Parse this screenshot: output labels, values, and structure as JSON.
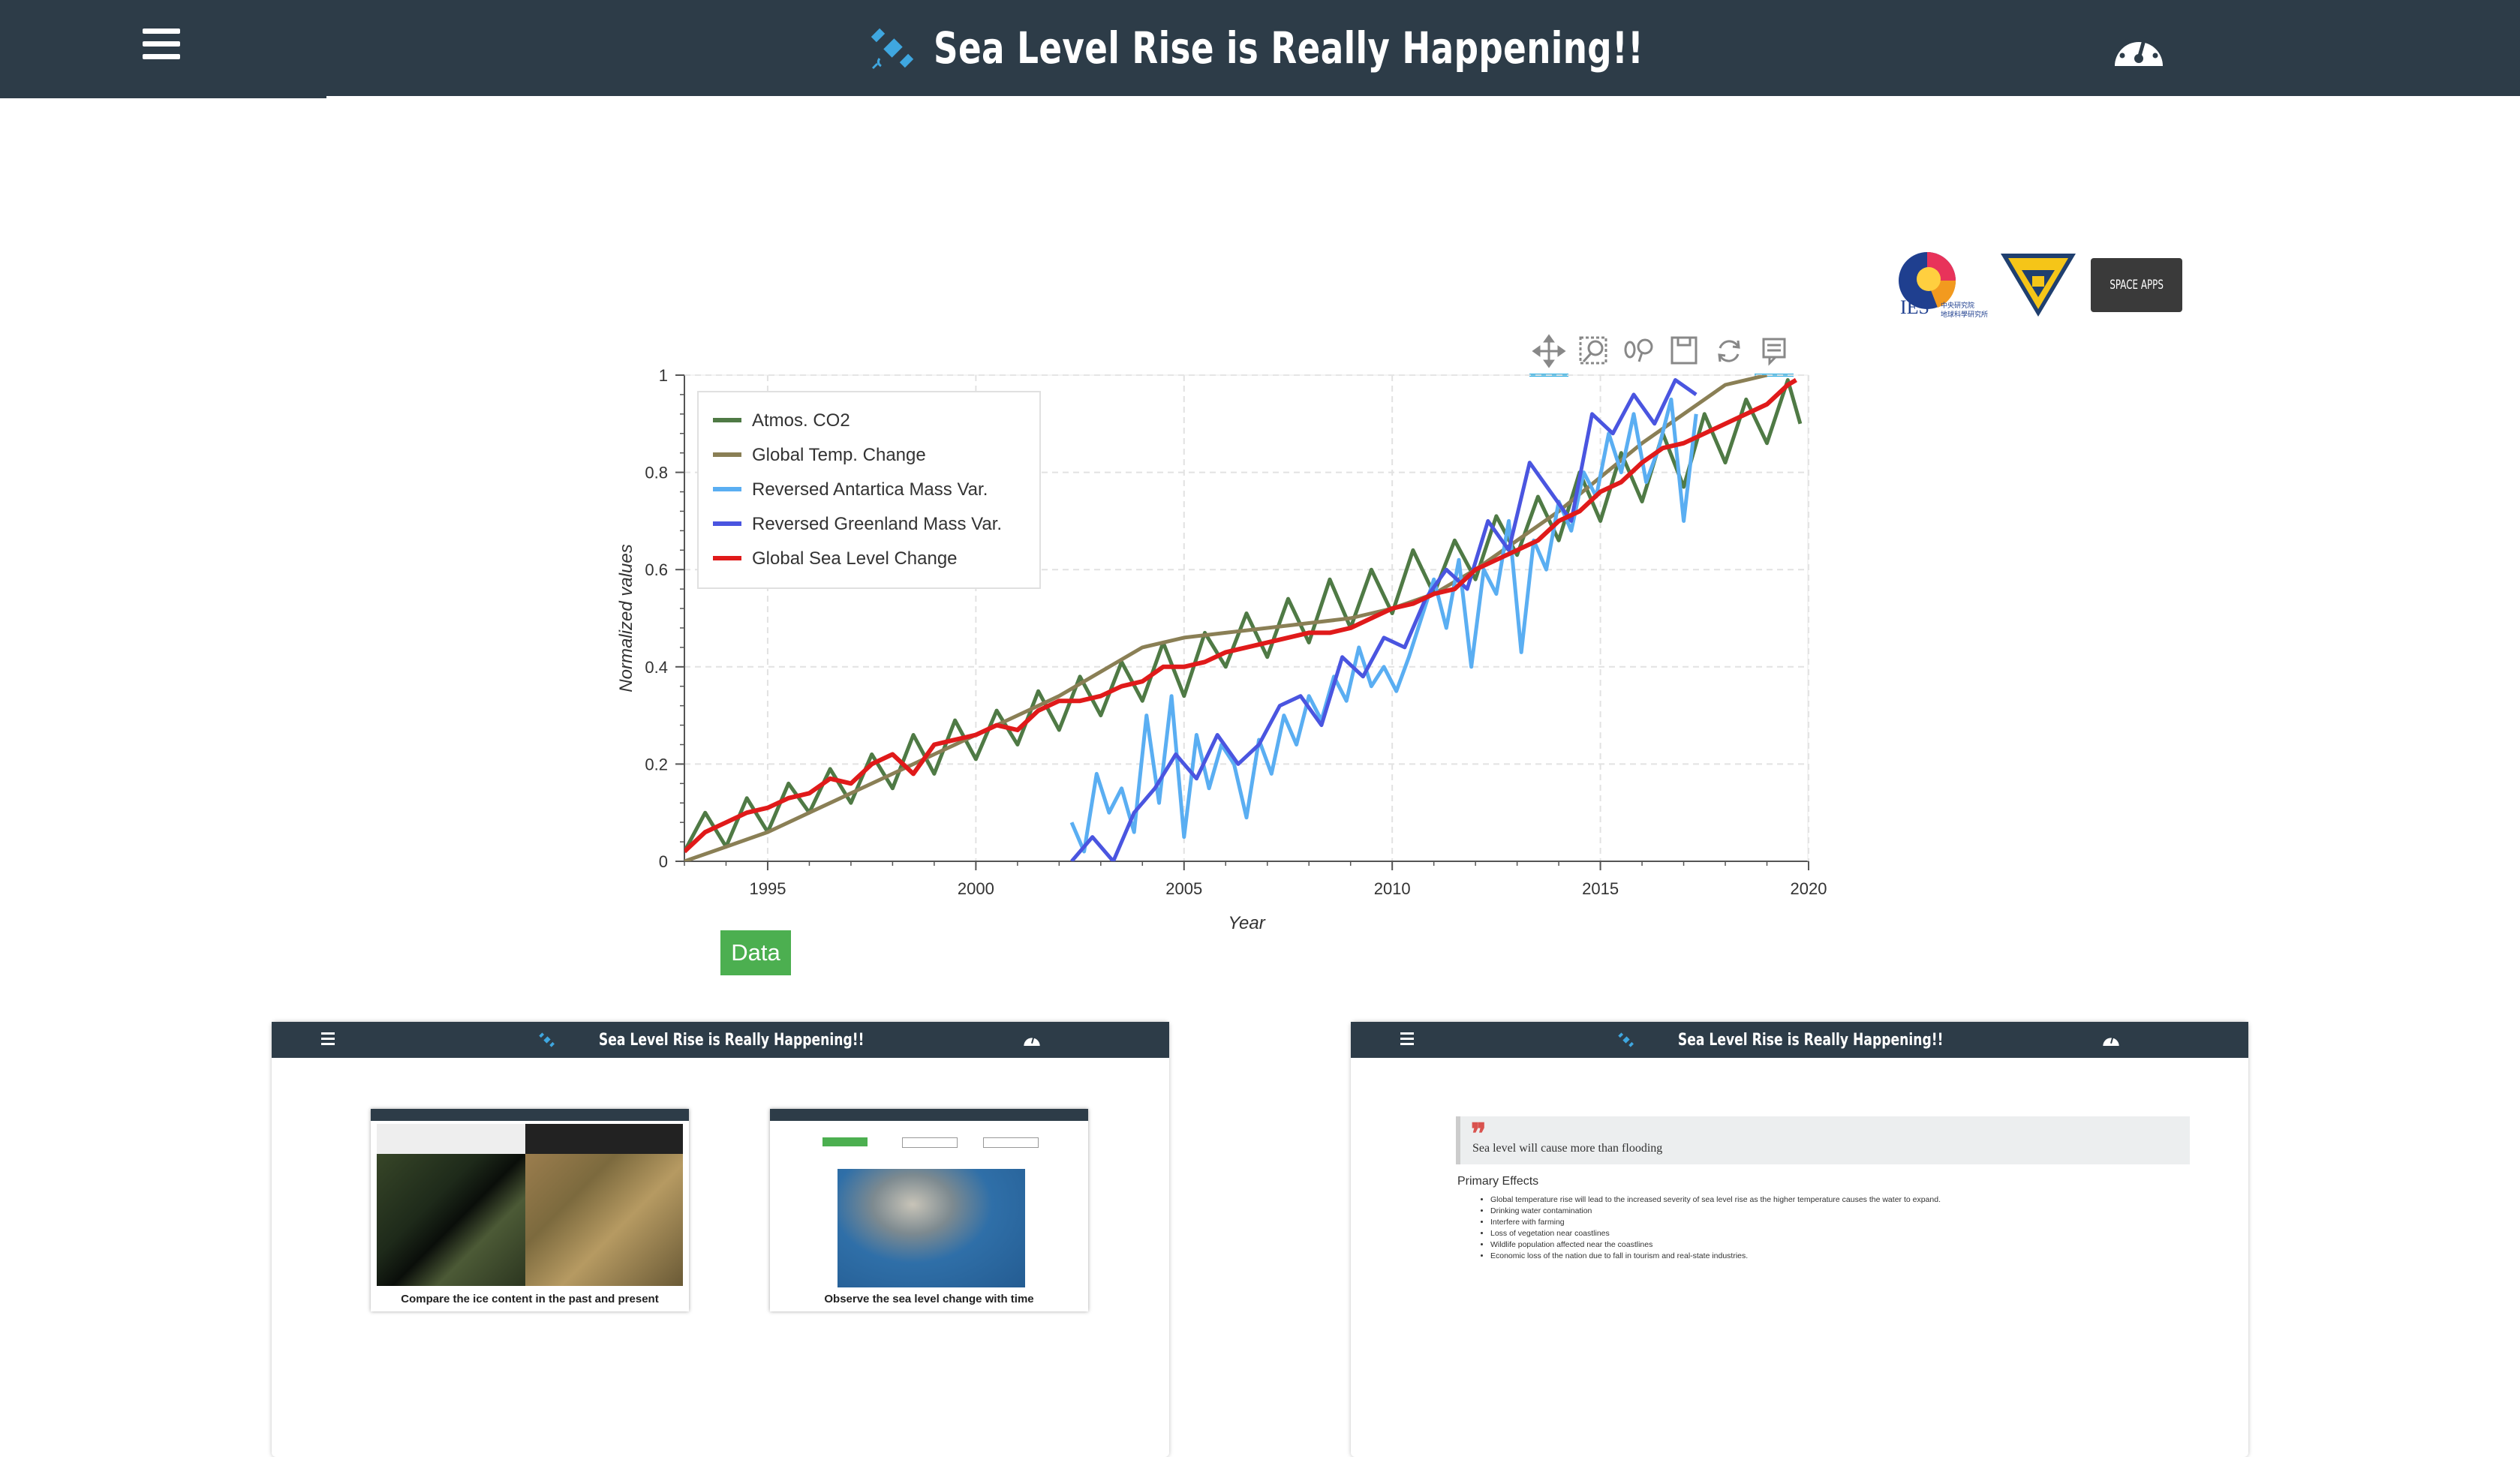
{
  "header": {
    "title": "Sea Level Rise is Really Happening!!",
    "title_icon": "satellite-icon",
    "menu_icon": "hamburger-menu-icon",
    "dashboard_icon": "dashboard-gauge-icon"
  },
  "logos": [
    {
      "name": "ies-logo",
      "text": "IES"
    },
    {
      "name": "university-logo",
      "text": ""
    },
    {
      "name": "space-apps-logo",
      "text": "SPACE APPS"
    }
  ],
  "toolbar": {
    "tools": [
      "pan-tool-icon",
      "box-zoom-tool-icon",
      "wheel-zoom-tool-icon",
      "save-tool-icon",
      "reset-tool-icon",
      "hover-tool-icon"
    ]
  },
  "chart_data": {
    "type": "line",
    "title": "",
    "xlabel": "Year",
    "ylabel": "Normalized values",
    "xlim": [
      1993,
      2020
    ],
    "ylim": [
      0,
      1
    ],
    "x_ticks": [
      "1995",
      "2000",
      "2005",
      "2010",
      "2015",
      "2020"
    ],
    "y_ticks": [
      "0",
      "0.2",
      "0.4",
      "0.6",
      "0.8",
      "1"
    ],
    "grid": true,
    "legend_position": "top-left",
    "series": [
      {
        "name": "Atmos. CO2",
        "color": "#4f7a45",
        "x": [
          1993.0,
          1993.5,
          1994.0,
          1994.5,
          1995.0,
          1995.5,
          1996.0,
          1996.5,
          1997.0,
          1997.5,
          1998.0,
          1998.5,
          1999.0,
          1999.5,
          2000.0,
          2000.5,
          2001.0,
          2001.5,
          2002.0,
          2002.5,
          2003.0,
          2003.5,
          2004.0,
          2004.5,
          2005.0,
          2005.5,
          2006.0,
          2006.5,
          2007.0,
          2007.5,
          2008.0,
          2008.5,
          2009.0,
          2009.5,
          2010.0,
          2010.5,
          2011.0,
          2011.5,
          2012.0,
          2012.5,
          2013.0,
          2013.5,
          2014.0,
          2014.5,
          2015.0,
          2015.5,
          2016.0,
          2016.5,
          2017.0,
          2017.5,
          2018.0,
          2018.5,
          2019.0,
          2019.5,
          2019.8
        ],
        "y": [
          0.02,
          0.1,
          0.03,
          0.13,
          0.06,
          0.16,
          0.1,
          0.19,
          0.12,
          0.22,
          0.15,
          0.26,
          0.18,
          0.29,
          0.21,
          0.31,
          0.24,
          0.35,
          0.27,
          0.38,
          0.3,
          0.41,
          0.33,
          0.45,
          0.34,
          0.47,
          0.4,
          0.51,
          0.42,
          0.54,
          0.45,
          0.58,
          0.48,
          0.6,
          0.51,
          0.64,
          0.55,
          0.66,
          0.58,
          0.71,
          0.63,
          0.75,
          0.66,
          0.8,
          0.7,
          0.84,
          0.74,
          0.88,
          0.77,
          0.92,
          0.82,
          0.95,
          0.86,
          0.99,
          0.9
        ]
      },
      {
        "name": "Global Temp. Change",
        "color": "#8a7f55",
        "x": [
          1993,
          1994,
          1995,
          1996,
          1997,
          1998,
          1999,
          2000,
          2001,
          2002,
          2003,
          2004,
          2005,
          2006,
          2007,
          2008,
          2009,
          2010,
          2011,
          2012,
          2013,
          2014,
          2015,
          2016,
          2017,
          2018,
          2019
        ],
        "y": [
          0.0,
          0.03,
          0.06,
          0.1,
          0.14,
          0.18,
          0.22,
          0.26,
          0.3,
          0.34,
          0.39,
          0.44,
          0.46,
          0.47,
          0.48,
          0.49,
          0.5,
          0.52,
          0.55,
          0.6,
          0.66,
          0.72,
          0.79,
          0.86,
          0.92,
          0.98,
          1.0
        ]
      },
      {
        "name": "Reversed Antartica Mass Var.",
        "color": "#5aaef2",
        "x": [
          2002.3,
          2002.6,
          2002.9,
          2003.2,
          2003.5,
          2003.8,
          2004.1,
          2004.4,
          2004.7,
          2005.0,
          2005.3,
          2005.6,
          2005.9,
          2006.2,
          2006.5,
          2006.8,
          2007.1,
          2007.4,
          2007.7,
          2008.0,
          2008.3,
          2008.6,
          2008.9,
          2009.2,
          2009.5,
          2009.8,
          2010.1,
          2010.4,
          2010.7,
          2011.0,
          2011.3,
          2011.6,
          2011.9,
          2012.2,
          2012.5,
          2012.8,
          2013.1,
          2013.4,
          2013.7,
          2014.0,
          2014.3,
          2014.6,
          2014.9,
          2015.2,
          2015.5,
          2015.8,
          2016.1,
          2016.4,
          2016.7,
          2017.0,
          2017.3
        ],
        "y": [
          0.08,
          0.02,
          0.18,
          0.1,
          0.15,
          0.06,
          0.3,
          0.12,
          0.34,
          0.05,
          0.26,
          0.15,
          0.24,
          0.2,
          0.09,
          0.25,
          0.18,
          0.3,
          0.24,
          0.34,
          0.29,
          0.38,
          0.33,
          0.44,
          0.36,
          0.4,
          0.35,
          0.42,
          0.5,
          0.58,
          0.48,
          0.62,
          0.4,
          0.6,
          0.55,
          0.7,
          0.43,
          0.66,
          0.6,
          0.74,
          0.68,
          0.8,
          0.75,
          0.88,
          0.8,
          0.92,
          0.78,
          0.85,
          0.95,
          0.7,
          0.92
        ]
      },
      {
        "name": "Reversed Greenland Mass Var.",
        "color": "#4a55e0",
        "x": [
          2002.3,
          2002.8,
          2003.3,
          2003.8,
          2004.3,
          2004.8,
          2005.3,
          2005.8,
          2006.3,
          2006.8,
          2007.3,
          2007.8,
          2008.3,
          2008.8,
          2009.3,
          2009.8,
          2010.3,
          2010.8,
          2011.3,
          2011.8,
          2012.3,
          2012.8,
          2013.3,
          2013.8,
          2014.3,
          2014.8,
          2015.3,
          2015.8,
          2016.3,
          2016.8,
          2017.3
        ],
        "y": [
          0.0,
          0.05,
          0.0,
          0.1,
          0.15,
          0.22,
          0.17,
          0.26,
          0.2,
          0.24,
          0.32,
          0.34,
          0.28,
          0.42,
          0.38,
          0.46,
          0.44,
          0.54,
          0.6,
          0.56,
          0.7,
          0.64,
          0.82,
          0.76,
          0.7,
          0.92,
          0.88,
          0.96,
          0.9,
          0.99,
          0.96
        ]
      },
      {
        "name": "Global Sea Level Change",
        "color": "#e01a1a",
        "x": [
          1993.0,
          1993.5,
          1994.0,
          1994.5,
          1995.0,
          1995.5,
          1996.0,
          1996.5,
          1997.0,
          1997.5,
          1998.0,
          1998.5,
          1999.0,
          1999.5,
          2000.0,
          2000.5,
          2001.0,
          2001.5,
          2002.0,
          2002.5,
          2003.0,
          2003.5,
          2004.0,
          2004.5,
          2005.0,
          2005.5,
          2006.0,
          2006.5,
          2007.0,
          2007.5,
          2008.0,
          2008.5,
          2009.0,
          2009.5,
          2010.0,
          2010.5,
          2011.0,
          2011.5,
          2012.0,
          2012.5,
          2013.0,
          2013.5,
          2014.0,
          2014.5,
          2015.0,
          2015.5,
          2016.0,
          2016.5,
          2017.0,
          2017.5,
          2018.0,
          2018.5,
          2019.0,
          2019.5,
          2019.7
        ],
        "y": [
          0.02,
          0.06,
          0.08,
          0.1,
          0.11,
          0.13,
          0.14,
          0.17,
          0.16,
          0.2,
          0.22,
          0.18,
          0.24,
          0.25,
          0.26,
          0.28,
          0.27,
          0.31,
          0.33,
          0.33,
          0.34,
          0.36,
          0.37,
          0.4,
          0.4,
          0.41,
          0.43,
          0.44,
          0.45,
          0.46,
          0.47,
          0.47,
          0.48,
          0.5,
          0.52,
          0.53,
          0.55,
          0.56,
          0.6,
          0.62,
          0.64,
          0.66,
          0.7,
          0.72,
          0.76,
          0.78,
          0.82,
          0.85,
          0.86,
          0.88,
          0.9,
          0.92,
          0.94,
          0.98,
          0.99
        ]
      }
    ]
  },
  "data_button": {
    "label": "Data"
  },
  "cards": [
    {
      "header_title": "Sea Level Rise is Really Happening!!",
      "minis": [
        {
          "caption": "Compare the ice content in the past and present"
        },
        {
          "caption": "Observe the sea level change with time"
        }
      ]
    },
    {
      "header_title": "Sea Level Rise is Really Happening!!",
      "quote_mark": "❞",
      "quote": "Sea level will cause more than flooding",
      "effects_title": "Primary Effects",
      "effects": [
        "Global temperature rise will lead to the increased severity of sea level rise as the higher temperature causes the water to expand.",
        "Drinking water contamination",
        "Interfere with farming",
        "Loss of vegetation near coastlines",
        "Wildlife population affected near the coastlines",
        "Economic loss of the nation due to fall in tourism and real-state industries."
      ]
    }
  ]
}
